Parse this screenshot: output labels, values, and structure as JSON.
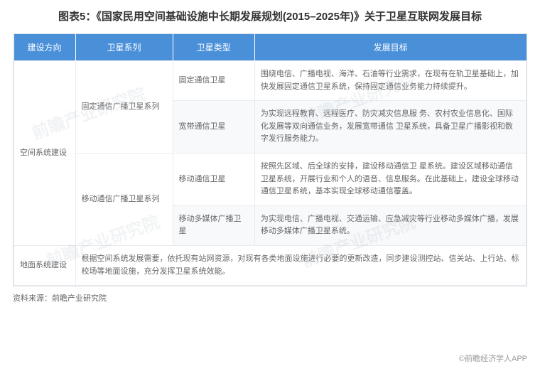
{
  "title": "图表5：《国家民用空间基础设施中长期发展规划(2015–2025年)》关于卫星互联网发展目标",
  "headers": {
    "col1": "建设方向",
    "col2": "卫星系列",
    "col3": "卫星类型",
    "col4": "发展目标"
  },
  "rows": {
    "r1": {
      "direction": "空间系统建设",
      "series": "固定通信广播卫星系列",
      "type": "固定通信卫星",
      "goal": "围绕电信、广播电视、海洋、石油等行业需求，在现有在轨卫星基础上，加快发展固定通信卫星系统，保持固定通信业务能力持续提升。"
    },
    "r2": {
      "type": "宽带通信卫星",
      "goal": "为实现远程教育、远程医疗、防灾减灾信息服 务、农村农业信息化、国际化发展等双向通信业务，发展宽带通信 卫星系统，具备卫星广播影视和数字发行服务能力。"
    },
    "r3": {
      "series": "移动通信广播卫星系列",
      "type": "移动通信卫星",
      "goal": "按照先区域、后全球的安排，建设移动通信卫 星系统。建设区域移动通信卫星系统，开展行业和个人的语音、信息服务。在此基础上，建设全球移动通信卫星系统，基本实现全球移动通信覆盖。"
    },
    "r4": {
      "type": "移动多媒体广播卫星",
      "goal": "为实现电信、广播电视、交通运输、应急减灾等行业移动多媒体广播，发展移动多媒体广播卫星系统。"
    },
    "r5": {
      "direction": "地面系统建设",
      "goal": "根据空间系统发展需要，依托现有站网资源，对现有各类地面设施进行必要的更新改造，同步建设测控站、信关站、上行站、标校场等地面设施，充分发挥卫星系统效能。"
    }
  },
  "source": "资料来源：前瞻产业研究院",
  "brand": "©前瞻经济学人APP",
  "watermark": "前瞻产业研究院",
  "colors": {
    "header_bg": "#4a90d9",
    "header_text": "#ffffff",
    "border": "#e8ebef",
    "text": "#666666",
    "alt_row": "#f7f9fb"
  }
}
